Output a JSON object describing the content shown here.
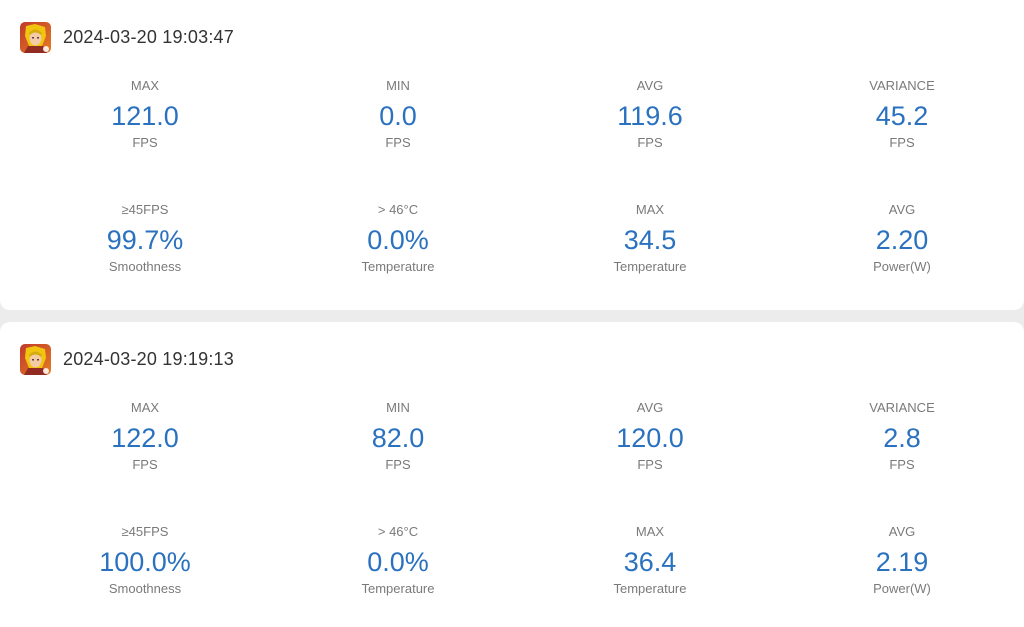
{
  "sessions": [
    {
      "icon": "game-avatar-icon",
      "timestamp": "2024-03-20 19:03:47",
      "metrics": [
        {
          "label": "MAX",
          "value": "121.0",
          "unit": "FPS"
        },
        {
          "label": "MIN",
          "value": "0.0",
          "unit": "FPS"
        },
        {
          "label": "AVG",
          "value": "119.6",
          "unit": "FPS"
        },
        {
          "label": "VARIANCE",
          "value": "45.2",
          "unit": "FPS"
        },
        {
          "label": "≥45FPS",
          "value": "99.7%",
          "unit": "Smoothness"
        },
        {
          "label": "> 46°C",
          "value": "0.0%",
          "unit": "Temperature"
        },
        {
          "label": "MAX",
          "value": "34.5",
          "unit": "Temperature"
        },
        {
          "label": "AVG",
          "value": "2.20",
          "unit": "Power(W)"
        }
      ]
    },
    {
      "icon": "game-avatar-icon",
      "timestamp": "2024-03-20 19:19:13",
      "metrics": [
        {
          "label": "MAX",
          "value": "122.0",
          "unit": "FPS"
        },
        {
          "label": "MIN",
          "value": "82.0",
          "unit": "FPS"
        },
        {
          "label": "AVG",
          "value": "120.0",
          "unit": "FPS"
        },
        {
          "label": "VARIANCE",
          "value": "2.8",
          "unit": "FPS"
        },
        {
          "label": "≥45FPS",
          "value": "100.0%",
          "unit": "Smoothness"
        },
        {
          "label": "> 46°C",
          "value": "0.0%",
          "unit": "Temperature"
        },
        {
          "label": "MAX",
          "value": "36.4",
          "unit": "Temperature"
        },
        {
          "label": "AVG",
          "value": "2.19",
          "unit": "Power(W)"
        }
      ]
    }
  ],
  "colors": {
    "value": "#2a72bf",
    "label": "#7a7a7a",
    "timestamp": "#333333",
    "card": "#ffffff",
    "page": "#ececec"
  }
}
